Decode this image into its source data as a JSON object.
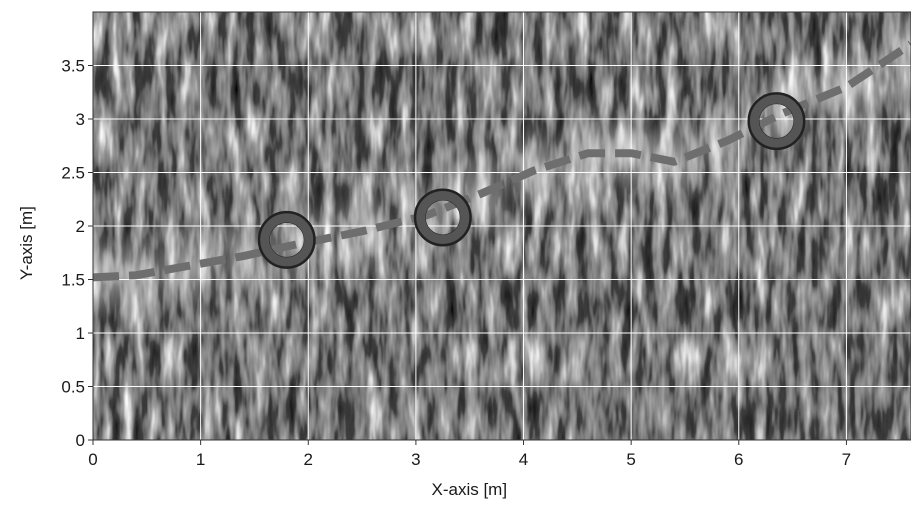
{
  "chart_data": {
    "type": "heatmap",
    "title": "",
    "xlabel": "X-axis [m]",
    "ylabel": "Y-axis [m]",
    "xlim": [
      0,
      7.6
    ],
    "ylim": [
      0,
      4.0
    ],
    "x_ticks": [
      0,
      1,
      2,
      3,
      4,
      5,
      6,
      7
    ],
    "x_tick_labels": [
      "0",
      "1",
      "2",
      "3",
      "4",
      "5",
      "6",
      "7"
    ],
    "y_ticks": [
      0,
      0.5,
      1,
      1.5,
      2,
      2.5,
      3,
      3.5
    ],
    "y_tick_labels": [
      "0",
      "0.5",
      "1",
      "1.5",
      "2",
      "2.5",
      "3",
      "3.5"
    ],
    "grid": true,
    "colormap": "grayscale",
    "path": {
      "style": "dashed",
      "color": "#6e6e6e",
      "x": [
        0,
        0.4,
        0.9,
        1.4,
        1.9,
        2.5,
        3.1,
        3.6,
        4.1,
        4.6,
        5.0,
        5.4,
        5.9,
        6.4,
        7.0,
        7.6
      ],
      "y": [
        1.52,
        1.54,
        1.63,
        1.72,
        1.83,
        1.95,
        2.1,
        2.3,
        2.52,
        2.68,
        2.68,
        2.6,
        2.8,
        3.05,
        3.3,
        3.7
      ]
    },
    "markers": {
      "shape": "ring",
      "color": "#555555",
      "x": [
        1.8,
        3.25,
        6.35
      ],
      "y": [
        1.87,
        2.08,
        2.98
      ]
    }
  },
  "colors": {
    "grid": "#ffffff",
    "path": "#6e6e6e",
    "marker": "#555555",
    "background": "#ffffff"
  }
}
